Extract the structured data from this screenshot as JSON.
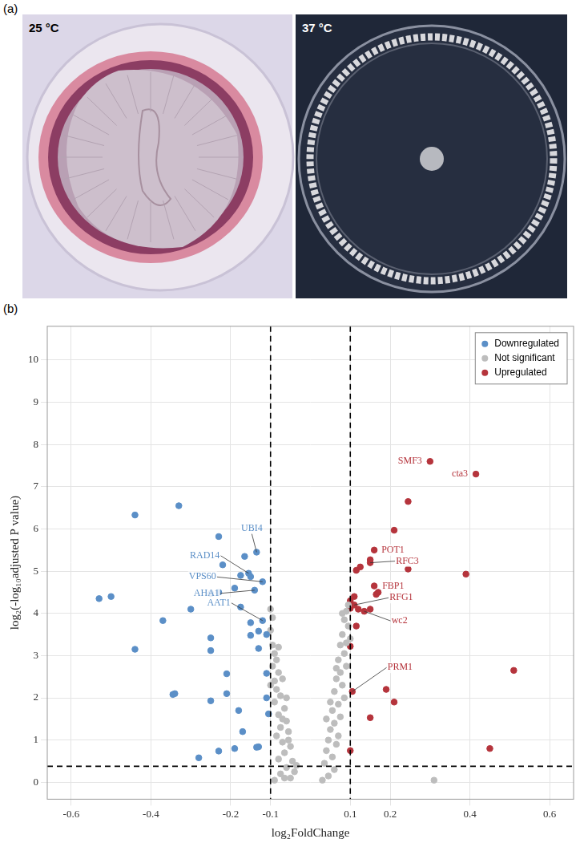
{
  "panel_a": {
    "letter": "(a)",
    "photos": [
      {
        "label": "25 °C"
      },
      {
        "label": "37 °C"
      }
    ]
  },
  "chart_data": {
    "letter": "(b)",
    "type": "scatter",
    "x_label": "log₂FoldChange",
    "y_label": "log₂(-log₁₀adjusted P value)",
    "xlim": [
      -0.66,
      0.66
    ],
    "ylim": [
      -0.4,
      10.8
    ],
    "xticks": [
      -0.6,
      -0.4,
      -0.2,
      -0.1,
      0.1,
      0.2,
      0.4,
      0.6
    ],
    "yticks": [
      0,
      1,
      2,
      3,
      4,
      5,
      6,
      7,
      8,
      9,
      10
    ],
    "grid": true,
    "legend": "top-right",
    "marker": "circle",
    "reference_lines": {
      "x": [
        -0.1,
        0.1
      ],
      "y": 0.38
    },
    "series": [
      {
        "name": "Downregulated",
        "color": "#5b8fc7",
        "x": [
          -0.33,
          -0.44,
          -0.23,
          -0.135,
          -0.165,
          -0.22,
          -0.155,
          -0.15,
          -0.175,
          -0.12,
          -0.19,
          -0.14,
          -0.23,
          -0.25,
          -0.3,
          -0.175,
          -0.53,
          -0.5,
          -0.37,
          -0.12,
          -0.15,
          -0.13,
          -0.11,
          -0.15,
          -0.25,
          -0.13,
          -0.44,
          -0.25,
          -0.11,
          -0.21,
          -0.34,
          -0.345,
          -0.21,
          -0.11,
          -0.25,
          -0.18,
          -0.105,
          -0.17,
          -0.13,
          -0.135,
          -0.19,
          -0.23,
          -0.28
        ],
        "values": [
          6.55,
          6.33,
          5.82,
          5.45,
          5.35,
          5.15,
          4.95,
          4.87,
          4.9,
          4.75,
          4.6,
          4.55,
          4.5,
          4.47,
          4.1,
          4.15,
          4.35,
          4.4,
          3.83,
          3.83,
          3.78,
          3.58,
          3.5,
          3.48,
          3.42,
          3.17,
          3.15,
          3.12,
          2.58,
          2.57,
          2.1,
          2.08,
          2.1,
          2.0,
          1.93,
          1.7,
          1.62,
          1.2,
          0.84,
          0.83,
          0.8,
          0.74,
          0.58
        ],
        "annotations": [
          {
            "text": "UBI4",
            "x": -0.135,
            "y": 5.45
          },
          {
            "text": "RAD14",
            "x": -0.155,
            "y": 4.95
          },
          {
            "text": "VPS60",
            "x": -0.12,
            "y": 4.75
          },
          {
            "text": "AHA1",
            "x": -0.14,
            "y": 4.55
          },
          {
            "text": "AAT1",
            "x": -0.12,
            "y": 3.83
          }
        ]
      },
      {
        "name": "Not significant",
        "color": "#bdbdbd",
        "x": [
          -0.095,
          -0.09,
          -0.08,
          -0.085,
          -0.095,
          -0.08,
          -0.09,
          -0.085,
          -0.07,
          -0.1,
          -0.075,
          -0.09,
          -0.065,
          -0.08,
          -0.06,
          -0.075,
          -0.055,
          -0.085,
          -0.07,
          -0.05,
          -0.065,
          -0.08,
          -0.045,
          -0.06,
          -0.075,
          -0.05,
          -0.04,
          -0.09,
          -0.1,
          -0.095,
          -0.1,
          -0.06,
          -0.07,
          -0.055,
          -0.035,
          -0.065,
          0.09,
          0.085,
          0.095,
          0.08,
          0.075,
          0.09,
          0.085,
          0.07,
          0.09,
          0.075,
          0.065,
          0.08,
          0.06,
          0.085,
          0.07,
          0.055,
          0.075,
          0.06,
          0.05,
          0.07,
          0.045,
          0.065,
          0.04,
          0.055,
          0.035,
          0.06,
          0.045,
          0.03,
          0.095,
          0.08,
          0.1,
          0.05,
          0.065,
          0.04,
          0.31
        ],
        "values": [
          3.25,
          3.05,
          3.2,
          2.9,
          2.75,
          2.6,
          2.4,
          2.2,
          2.45,
          2.3,
          2.05,
          1.9,
          1.75,
          1.6,
          1.45,
          1.3,
          1.2,
          1.1,
          0.95,
          0.85,
          0.7,
          0.55,
          0.5,
          0.35,
          0.2,
          0.1,
          0.25,
          0.05,
          3.6,
          3.9,
          4.1,
          2.0,
          1.5,
          1.0,
          0.4,
          0.1,
          4.05,
          3.85,
          3.7,
          3.5,
          3.25,
          3.3,
          3.05,
          2.9,
          2.75,
          2.6,
          2.45,
          2.3,
          2.15,
          2.0,
          1.85,
          1.7,
          1.55,
          1.4,
          1.25,
          1.1,
          1.0,
          0.9,
          0.75,
          0.6,
          0.45,
          0.3,
          0.15,
          0.05,
          4.2,
          4.0,
          3.4,
          1.9,
          2.7,
          1.5,
          0.05
        ]
      },
      {
        "name": "Upregulated",
        "color": "#b5343c",
        "x": [
          0.3,
          0.415,
          0.245,
          0.21,
          0.16,
          0.15,
          0.15,
          0.125,
          0.115,
          0.245,
          0.39,
          0.16,
          0.17,
          0.165,
          0.11,
          0.1,
          0.11,
          0.1,
          0.12,
          0.135,
          0.15,
          0.115,
          0.1,
          0.105,
          0.19,
          0.21,
          0.15,
          0.1,
          0.51,
          0.45
        ],
        "values": [
          7.6,
          7.3,
          6.65,
          5.97,
          5.5,
          5.27,
          5.2,
          5.1,
          5.02,
          5.05,
          4.93,
          4.65,
          4.5,
          4.45,
          4.4,
          4.3,
          4.2,
          4.12,
          4.1,
          4.05,
          4.1,
          3.7,
          3.22,
          2.15,
          2.2,
          1.9,
          1.53,
          0.75,
          2.65,
          0.8
        ],
        "annotations": [
          {
            "text": "SMF3",
            "x": 0.3,
            "y": 7.6
          },
          {
            "text": "cta3",
            "x": 0.415,
            "y": 7.3
          },
          {
            "text": "POT1",
            "x": 0.16,
            "y": 5.5
          },
          {
            "text": "RFC3",
            "x": 0.15,
            "y": 5.2
          },
          {
            "text": "FBP1",
            "x": 0.16,
            "y": 4.65
          },
          {
            "text": "RFG1",
            "x": 0.11,
            "y": 4.2
          },
          {
            "text": "wc2",
            "x": 0.135,
            "y": 4.05
          },
          {
            "text": "PRM1",
            "x": 0.105,
            "y": 2.15
          }
        ]
      }
    ]
  }
}
